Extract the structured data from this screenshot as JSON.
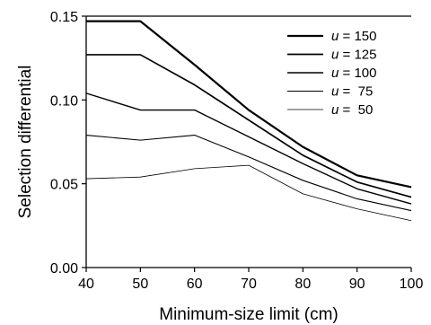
{
  "chart_data": {
    "type": "line",
    "title": "",
    "xlabel": "Minimum-size limit (cm)",
    "ylabel": "Selection differential",
    "x": [
      40,
      50,
      60,
      70,
      80,
      90,
      100
    ],
    "xlim": [
      40,
      100
    ],
    "ylim": [
      0,
      0.15
    ],
    "x_ticks": [
      "40",
      "50",
      "60",
      "70",
      "80",
      "90",
      "100"
    ],
    "y_ticks": [
      "0.00",
      "0.05",
      "0.10",
      "0.15"
    ],
    "grid": false,
    "legend_position": "top-right",
    "series": [
      {
        "name": "150",
        "legend_var": "u",
        "legend_eq": " = ",
        "stroke_width": 2.2,
        "color": "#000000",
        "values": [
          0.147,
          0.147,
          0.121,
          0.094,
          0.072,
          0.055,
          0.048
        ]
      },
      {
        "name": "125",
        "legend_var": "u",
        "legend_eq": " = ",
        "stroke_width": 1.7,
        "color": "#000000",
        "values": [
          0.127,
          0.127,
          0.109,
          0.088,
          0.067,
          0.051,
          0.042
        ]
      },
      {
        "name": "100",
        "legend_var": "u",
        "legend_eq": " = ",
        "stroke_width": 1.4,
        "color": "#000000",
        "values": [
          0.104,
          0.094,
          0.094,
          0.078,
          0.062,
          0.047,
          0.038
        ]
      },
      {
        "name": "75",
        "legend_var": "u",
        "legend_eq": " =  ",
        "stroke_width": 1.1,
        "color": "#000000",
        "values": [
          0.079,
          0.076,
          0.079,
          0.066,
          0.052,
          0.041,
          0.034
        ]
      },
      {
        "name": "50",
        "legend_var": "u",
        "legend_eq": " =  ",
        "stroke_width": 0.8,
        "color": "#000000",
        "values": [
          0.053,
          0.054,
          0.059,
          0.061,
          0.044,
          0.035,
          0.028
        ]
      }
    ]
  }
}
